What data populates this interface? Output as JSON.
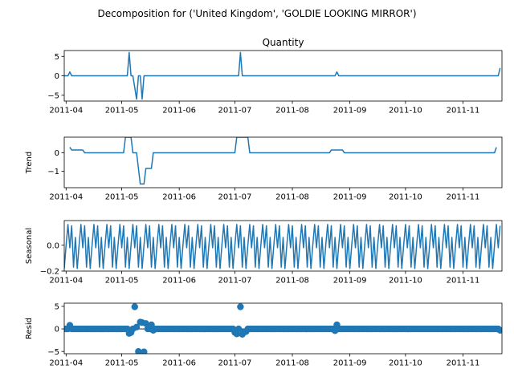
{
  "figure": {
    "suptitle": "Decomposition for ('United Kingdom', 'GOLDIE LOOKING MIRROR')"
  },
  "chart_data": {
    "type": "line",
    "x_tick_labels": [
      "2011-04",
      "2011-05",
      "2011-06",
      "2011-07",
      "2011-08",
      "2011-09",
      "2011-10",
      "2011-11"
    ],
    "x_ticks": [
      "2011-04-01",
      "2011-05-01",
      "2011-06-01",
      "2011-07-01",
      "2011-08-01",
      "2011-09-01",
      "2011-10-01",
      "2011-11-01"
    ],
    "x_range": [
      "2011-03-31",
      "2011-11-22"
    ],
    "panels": [
      {
        "key": "observed",
        "title": "Quantity",
        "ylabel": "",
        "type": "line",
        "ylim": [
          -6.5,
          6.5
        ],
        "yticks": [
          5,
          0,
          -5
        ],
        "ytick_labels": [
          "5",
          "0",
          "−5"
        ],
        "color": "#1f77b4",
        "points": [
          [
            "2011-03-31",
            0
          ],
          [
            "2011-04-02",
            0
          ],
          [
            "2011-04-03",
            1
          ],
          [
            "2011-04-04",
            0
          ],
          [
            "2011-05-04",
            0
          ],
          [
            "2011-05-05",
            6
          ],
          [
            "2011-05-06",
            0
          ],
          [
            "2011-05-07",
            0
          ],
          [
            "2011-05-09",
            -6
          ],
          [
            "2011-05-10",
            0
          ],
          [
            "2011-05-11",
            0
          ],
          [
            "2011-05-12",
            -6
          ],
          [
            "2011-05-13",
            0
          ],
          [
            "2011-07-03",
            0
          ],
          [
            "2011-07-04",
            6
          ],
          [
            "2011-07-05",
            0
          ],
          [
            "2011-08-24",
            0
          ],
          [
            "2011-08-25",
            1
          ],
          [
            "2011-08-26",
            0
          ],
          [
            "2011-11-20",
            0
          ],
          [
            "2011-11-21",
            2
          ]
        ]
      },
      {
        "key": "trend",
        "title": "",
        "ylabel": "Trend",
        "type": "line",
        "ylim": [
          -1.9,
          0.85
        ],
        "yticks": [
          0,
          -1
        ],
        "ytick_labels": [
          "0",
          "−1"
        ],
        "color": "#1f77b4",
        "points": [
          [
            "2011-04-03",
            0.3
          ],
          [
            "2011-04-04",
            0.15
          ],
          [
            "2011-04-10",
            0.15
          ],
          [
            "2011-04-11",
            0
          ],
          [
            "2011-05-02",
            0
          ],
          [
            "2011-05-03",
            0.85
          ],
          [
            "2011-05-06",
            0.85
          ],
          [
            "2011-05-07",
            0
          ],
          [
            "2011-05-09",
            0
          ],
          [
            "2011-05-11",
            -1.7
          ],
          [
            "2011-05-13",
            -1.7
          ],
          [
            "2011-05-14",
            -0.85
          ],
          [
            "2011-05-17",
            -0.85
          ],
          [
            "2011-05-18",
            0
          ],
          [
            "2011-07-01",
            0
          ],
          [
            "2011-07-02",
            0.85
          ],
          [
            "2011-07-08",
            0.85
          ],
          [
            "2011-07-09",
            0
          ],
          [
            "2011-08-21",
            0
          ],
          [
            "2011-08-22",
            0.15
          ],
          [
            "2011-08-28",
            0.15
          ],
          [
            "2011-08-29",
            0
          ],
          [
            "2011-11-18",
            0
          ],
          [
            "2011-11-19",
            0.3
          ]
        ]
      },
      {
        "key": "seasonal",
        "title": "",
        "ylabel": "Seasonal",
        "type": "line",
        "ylim": [
          -0.2,
          0.19
        ],
        "yticks": [
          0.0,
          -0.2
        ],
        "ytick_labels": [
          "0.0",
          "−0.2"
        ],
        "color": "#1f77b4",
        "period_days": 7,
        "start": "2011-03-31",
        "end": "2011-11-21",
        "pattern": [
          -0.18,
          0.0,
          0.16,
          -0.02,
          0.15,
          -0.17,
          0.06
        ]
      },
      {
        "key": "resid",
        "title": "",
        "ylabel": "Resid",
        "type": "scatter",
        "ylim": [
          -5.5,
          5.7
        ],
        "yticks": [
          5,
          0,
          -5
        ],
        "ytick_labels": [
          "5",
          "0",
          "−5"
        ],
        "color": "#1f77b4",
        "baseline": 0,
        "start": "2011-03-31",
        "end": "2011-11-21",
        "default_value": 0,
        "points": [
          [
            "2011-04-03",
            0.8
          ],
          [
            "2011-05-05",
            -1.0
          ],
          [
            "2011-05-06",
            -0.8
          ],
          [
            "2011-05-08",
            4.9
          ],
          [
            "2011-05-09",
            0.4
          ],
          [
            "2011-05-10",
            -5.0
          ],
          [
            "2011-05-11",
            1.5
          ],
          [
            "2011-05-12",
            1.4
          ],
          [
            "2011-05-13",
            -5.1
          ],
          [
            "2011-05-14",
            1.2
          ],
          [
            "2011-05-17",
            0.9
          ],
          [
            "2011-05-18",
            -0.3
          ],
          [
            "2011-07-01",
            -0.8
          ],
          [
            "2011-07-02",
            -1.1
          ],
          [
            "2011-07-04",
            4.9
          ],
          [
            "2011-07-05",
            -1.2
          ],
          [
            "2011-07-06",
            -0.7
          ],
          [
            "2011-07-07",
            -0.6
          ],
          [
            "2011-08-25",
            0.9
          ],
          [
            "2011-08-24",
            -0.4
          ],
          [
            "2011-11-21",
            -0.3
          ]
        ]
      }
    ]
  }
}
